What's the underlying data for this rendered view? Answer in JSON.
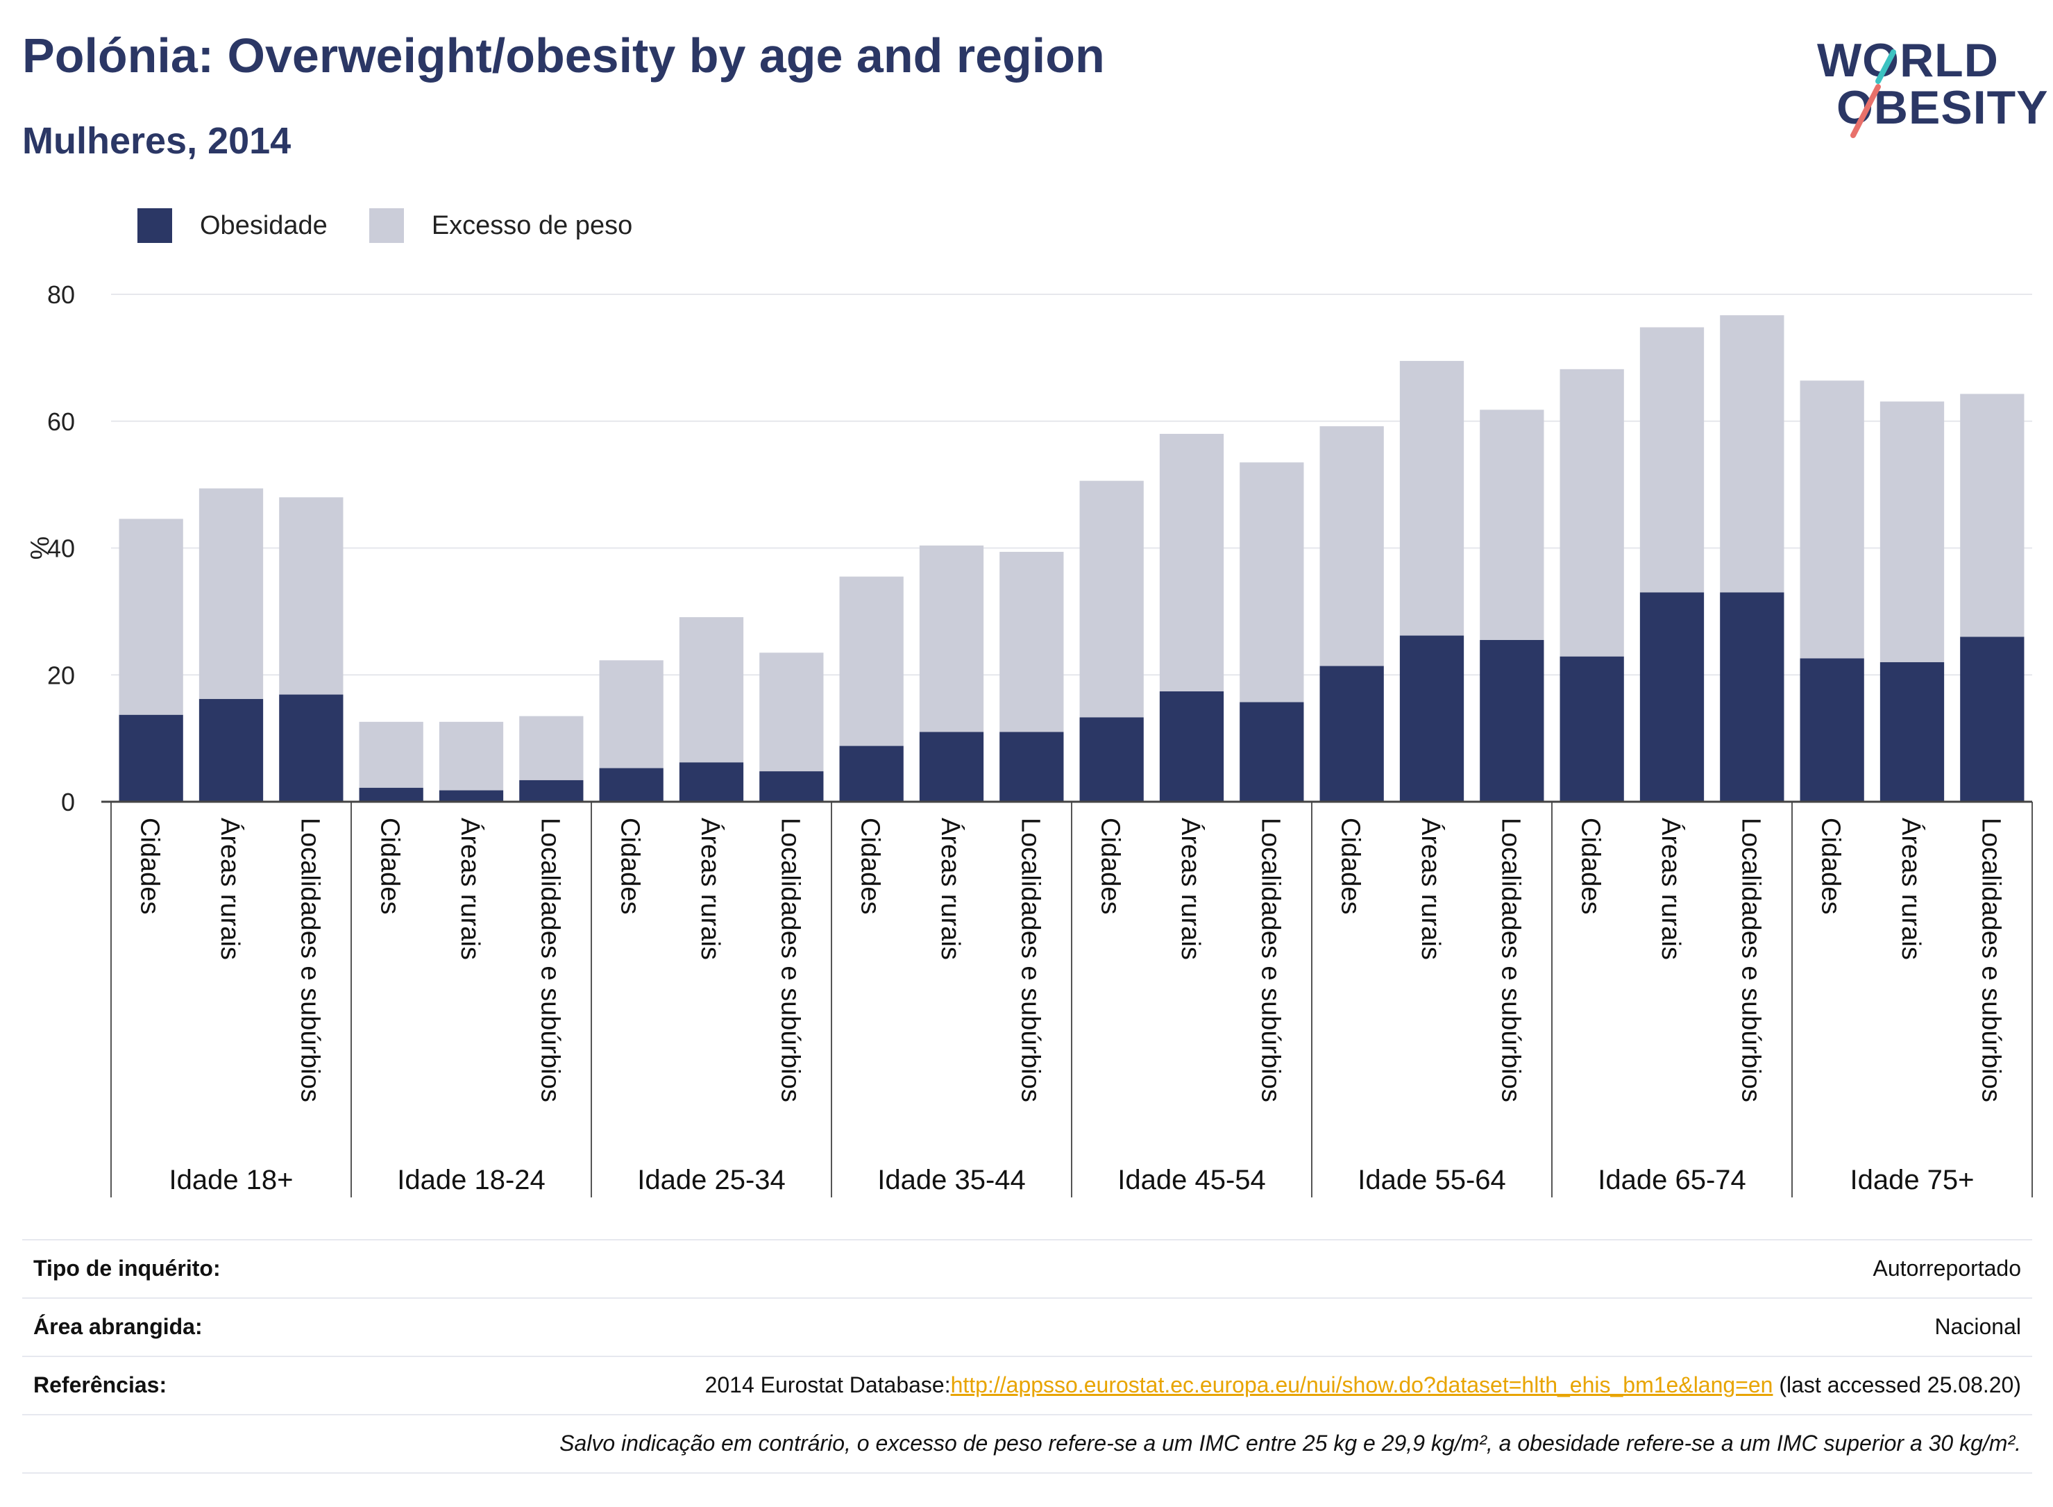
{
  "header": {
    "title": "Polónia: Overweight/obesity by age and region",
    "subtitle": "Mulheres, 2014"
  },
  "logo": {
    "line1": "WORLD",
    "line2": "OBESITY",
    "accent_colors": [
      "#3cc2c1",
      "#e8706a"
    ]
  },
  "legend": {
    "obesity_label": "Obesidade",
    "overweight_label": "Excesso de peso"
  },
  "chart_data": {
    "type": "bar",
    "stacked": true,
    "ylabel": "%",
    "ylim": [
      0,
      80
    ],
    "yticks": [
      0,
      20,
      40,
      60,
      80
    ],
    "grid": true,
    "legend_position": "top-left",
    "colors": {
      "obesity": "#2b3765",
      "overweight": "#cbcdd9"
    },
    "groups": [
      {
        "label": "Idade 18+",
        "bars": [
          {
            "category": "Cidades",
            "obesity": 13.7,
            "total": 44.6
          },
          {
            "category": "Áreas rurais",
            "obesity": 16.2,
            "total": 49.4
          },
          {
            "category": "Localidades e subúrbios",
            "obesity": 16.9,
            "total": 48.0
          }
        ]
      },
      {
        "label": "Idade 18-24",
        "bars": [
          {
            "category": "Cidades",
            "obesity": 2.2,
            "total": 12.6
          },
          {
            "category": "Áreas rurais",
            "obesity": 1.8,
            "total": 12.6
          },
          {
            "category": "Localidades e subúrbios",
            "obesity": 3.4,
            "total": 13.5
          }
        ]
      },
      {
        "label": "Idade 25-34",
        "bars": [
          {
            "category": "Cidades",
            "obesity": 5.3,
            "total": 22.3
          },
          {
            "category": "Áreas rurais",
            "obesity": 6.2,
            "total": 29.1
          },
          {
            "category": "Localidades e subúrbios",
            "obesity": 4.8,
            "total": 23.5
          }
        ]
      },
      {
        "label": "Idade 35-44",
        "bars": [
          {
            "category": "Cidades",
            "obesity": 8.8,
            "total": 35.5
          },
          {
            "category": "Áreas rurais",
            "obesity": 11.0,
            "total": 40.4
          },
          {
            "category": "Localidades e subúrbios",
            "obesity": 11.0,
            "total": 39.4
          }
        ]
      },
      {
        "label": "Idade 45-54",
        "bars": [
          {
            "category": "Cidades",
            "obesity": 13.3,
            "total": 50.6
          },
          {
            "category": "Áreas rurais",
            "obesity": 17.4,
            "total": 58.0
          },
          {
            "category": "Localidades e subúrbios",
            "obesity": 15.7,
            "total": 53.5
          }
        ]
      },
      {
        "label": "Idade 55-64",
        "bars": [
          {
            "category": "Cidades",
            "obesity": 21.4,
            "total": 59.2
          },
          {
            "category": "Áreas rurais",
            "obesity": 26.2,
            "total": 69.5
          },
          {
            "category": "Localidades e subúrbios",
            "obesity": 25.5,
            "total": 61.8
          }
        ]
      },
      {
        "label": "Idade 65-74",
        "bars": [
          {
            "category": "Cidades",
            "obesity": 22.9,
            "total": 68.2
          },
          {
            "category": "Áreas rurais",
            "obesity": 33.0,
            "total": 74.8
          },
          {
            "category": "Localidades e subúrbios",
            "obesity": 33.0,
            "total": 76.7
          }
        ]
      },
      {
        "label": "Idade 75+",
        "bars": [
          {
            "category": "Cidades",
            "obesity": 22.6,
            "total": 66.4
          },
          {
            "category": "Áreas rurais",
            "obesity": 22.0,
            "total": 63.1
          },
          {
            "category": "Localidades e subúrbios",
            "obesity": 26.0,
            "total": 64.3
          }
        ]
      }
    ]
  },
  "info": {
    "survey_label": "Tipo de inquérito:",
    "survey_value": "Autorreportado",
    "area_label": "Área abrangida:",
    "area_value": "Nacional",
    "ref_label": "Referências:",
    "ref_prefix": "2014 Eurostat Database:",
    "ref_link": "http://appsso.eurostat.ec.europa.eu/nui/show.do?dataset=hlth_ehis_bm1e&lang=en",
    "ref_suffix": " (last accessed 25.08.20)",
    "note": "Salvo indicação em contrário, o excesso de peso refere-se a um IMC entre 25 kg e 29,9 kg/m², a obesidade refere-se a um IMC superior a 30 kg/m²."
  }
}
